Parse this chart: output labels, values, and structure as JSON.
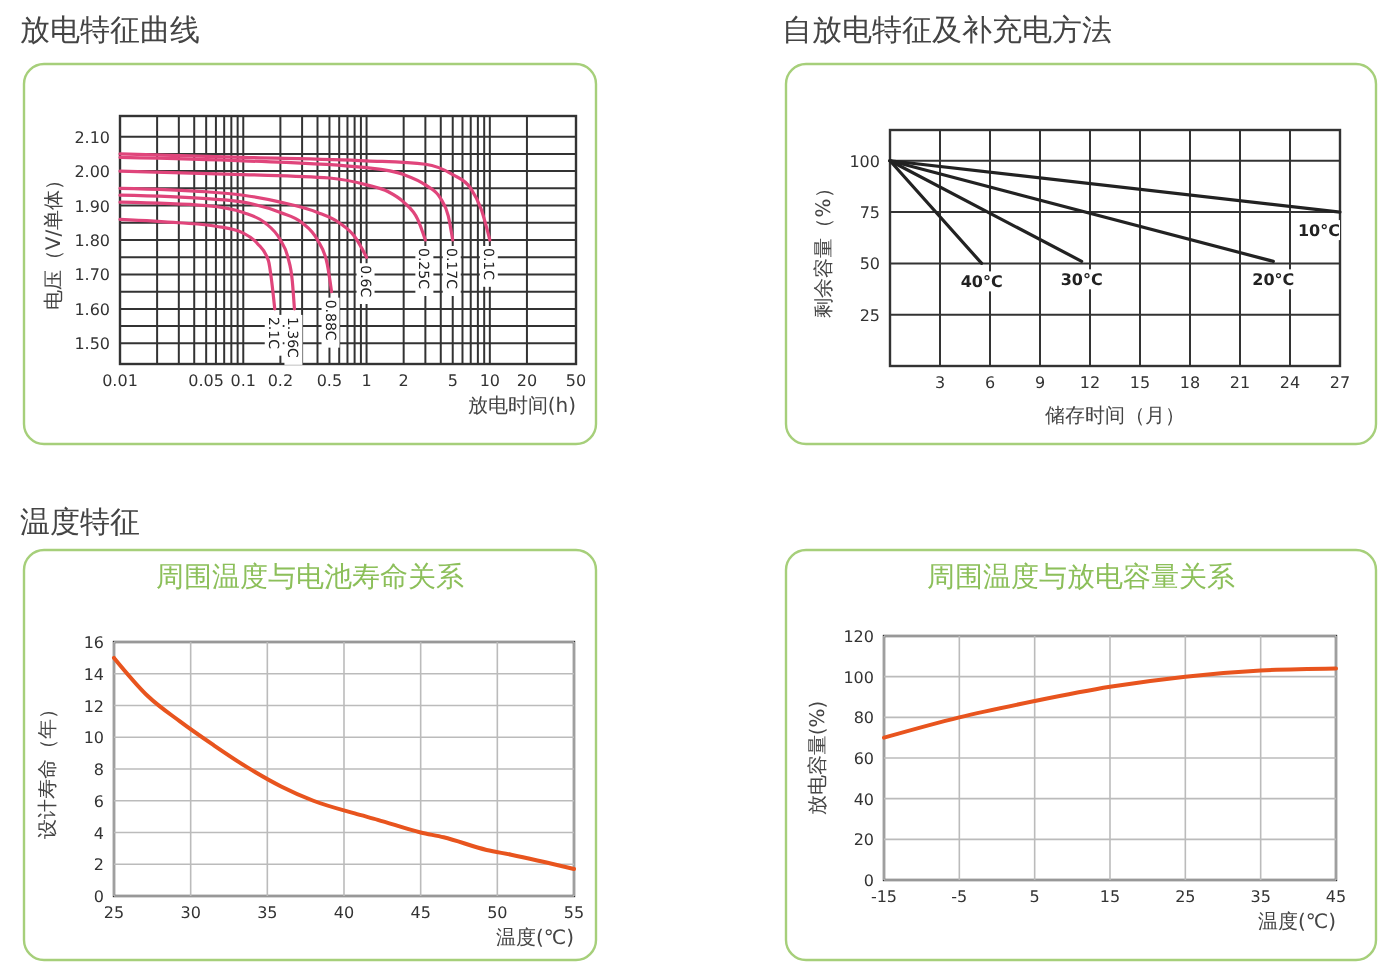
{
  "chart_data": [
    {
      "type": "line",
      "title": "放电特征曲线",
      "xlabel": "放电时间(h)",
      "ylabel": "电压（V/单体）",
      "log": "x",
      "grid": true,
      "xlim": [
        0.01,
        50
      ],
      "ylim": [
        1.44,
        2.16
      ],
      "xticks": [
        0.01,
        {
          "value": 0.02,
          "label": null
        },
        {
          "value": 0.03,
          "label": null
        },
        {
          "value": 0.04,
          "label": null
        },
        0.05,
        {
          "value": 0.06,
          "label": null
        },
        {
          "value": 0.07,
          "label": null
        },
        {
          "value": 0.08,
          "label": null
        },
        {
          "value": 0.09,
          "label": null
        },
        0.1,
        0.2,
        {
          "value": 0.3,
          "label": null
        },
        {
          "value": 0.4,
          "label": null
        },
        0.5,
        {
          "value": 0.6,
          "label": null
        },
        {
          "value": 0.7,
          "label": null
        },
        {
          "value": 0.8,
          "label": null
        },
        {
          "value": 0.9,
          "label": null
        },
        1,
        2,
        {
          "value": 3,
          "label": null
        },
        {
          "value": 4,
          "label": null
        },
        5,
        {
          "value": 6,
          "label": null
        },
        {
          "value": 7,
          "label": null
        },
        {
          "value": 8,
          "label": null
        },
        {
          "value": 9,
          "label": null
        },
        10,
        20,
        50
      ],
      "yticks": [
        {
          "value": 1.5,
          "label": "1.50"
        },
        {
          "value": 1.55,
          "label": null
        },
        {
          "value": 1.6,
          "label": "1.60"
        },
        {
          "value": 1.65,
          "label": null
        },
        {
          "value": 1.7,
          "label": "1.70"
        },
        {
          "value": 1.75,
          "label": null
        },
        {
          "value": 1.8,
          "label": "1.80"
        },
        {
          "value": 1.85,
          "label": null
        },
        {
          "value": 1.9,
          "label": "1.90"
        },
        {
          "value": 1.95,
          "label": null
        },
        {
          "value": 2.0,
          "label": "2.00"
        },
        {
          "value": 2.05,
          "label": null
        },
        {
          "value": 2.1,
          "label": "2.10"
        }
      ],
      "series": [
        {
          "name": "0.1C",
          "color": "#e0457b",
          "x": [
            0.01,
            0.1,
            1,
            3,
            5,
            7,
            8.5,
            10
          ],
          "values": [
            2.05,
            2.04,
            2.03,
            2.02,
            1.99,
            1.95,
            1.89,
            1.8
          ]
        },
        {
          "name": "0.17C",
          "color": "#e0457b",
          "x": [
            0.01,
            0.1,
            1,
            2,
            3,
            4,
            4.6,
            5
          ],
          "values": [
            2.04,
            2.03,
            2.01,
            1.99,
            1.96,
            1.92,
            1.87,
            1.8
          ]
        },
        {
          "name": "0.25C",
          "color": "#e0457b",
          "x": [
            0.01,
            0.1,
            0.5,
            1,
            1.5,
            2,
            2.6,
            3
          ],
          "values": [
            2.0,
            1.99,
            1.98,
            1.96,
            1.94,
            1.91,
            1.86,
            1.8
          ]
        },
        {
          "name": "0.6C",
          "color": "#e0457b",
          "x": [
            0.01,
            0.05,
            0.1,
            0.2,
            0.4,
            0.6,
            0.8,
            1
          ],
          "values": [
            1.95,
            1.94,
            1.93,
            1.91,
            1.88,
            1.85,
            1.81,
            1.75
          ]
        },
        {
          "name": "0.88C",
          "color": "#e0457b",
          "x": [
            0.01,
            0.05,
            0.1,
            0.2,
            0.3,
            0.4,
            0.48,
            0.52
          ],
          "values": [
            1.93,
            1.92,
            1.91,
            1.88,
            1.85,
            1.8,
            1.73,
            1.65
          ]
        },
        {
          "name": "1.36C",
          "color": "#e0457b",
          "x": [
            0.01,
            0.05,
            0.1,
            0.15,
            0.2,
            0.23,
            0.25,
            0.26
          ],
          "values": [
            1.91,
            1.9,
            1.88,
            1.85,
            1.8,
            1.75,
            1.68,
            1.6
          ]
        },
        {
          "name": "2.1C",
          "color": "#e0457b",
          "x": [
            0.01,
            0.03,
            0.06,
            0.1,
            0.13,
            0.16,
            0.17,
            0.18
          ],
          "values": [
            1.86,
            1.85,
            1.84,
            1.82,
            1.79,
            1.74,
            1.68,
            1.6
          ]
        }
      ]
    },
    {
      "type": "line",
      "title": "自放电特征及补充电方法",
      "xlabel": "储存时间（月）",
      "ylabel": "剩余容量（%）",
      "grid": true,
      "xlim": [
        0,
        27
      ],
      "ylim": [
        0,
        115
      ],
      "xticks": [
        3,
        6,
        9,
        12,
        15,
        18,
        21,
        24,
        27
      ],
      "yticks": [
        25,
        50,
        75,
        100
      ],
      "series": [
        {
          "name": "40°C",
          "color": "#222222",
          "x": [
            0,
            5.5
          ],
          "values": [
            100,
            50
          ]
        },
        {
          "name": "30°C",
          "color": "#222222",
          "x": [
            0,
            11.5
          ],
          "values": [
            100,
            51
          ]
        },
        {
          "name": "20°C",
          "color": "#222222",
          "x": [
            0,
            23
          ],
          "values": [
            100,
            51
          ]
        },
        {
          "name": "10°C",
          "color": "#222222",
          "x": [
            0,
            27
          ],
          "values": [
            100,
            75
          ]
        }
      ]
    },
    {
      "type": "line",
      "title": "周围温度与电池寿命关系",
      "annotations": [
        "温度特征"
      ],
      "xlabel": "温度(℃)",
      "ylabel": "设计寿命（年）",
      "grid": true,
      "xlim": [
        25,
        55
      ],
      "ylim": [
        0,
        16
      ],
      "xticks": [
        25,
        30,
        35,
        40,
        45,
        50,
        55
      ],
      "yticks": [
        0,
        2,
        4,
        6,
        8,
        10,
        12,
        14,
        16
      ],
      "series": [
        {
          "color": "#e8541e",
          "x": [
            25,
            27.2,
            29.3,
            31.5,
            33.7,
            35.9,
            38,
            40.7,
            42.2,
            45,
            46.5,
            49.3,
            50.9,
            55
          ],
          "values": [
            15,
            12.6,
            11,
            9.5,
            8.1,
            6.9,
            6,
            5.2,
            4.8,
            4,
            3.7,
            2.9,
            2.6,
            1.7
          ]
        }
      ]
    },
    {
      "type": "line",
      "title": "周围温度与放电容量关系",
      "xlabel": "温度(℃)",
      "ylabel": "放电容量(%)",
      "grid": true,
      "xlim": [
        -15,
        45
      ],
      "ylim": [
        0,
        120
      ],
      "xticks": [
        -15,
        -5,
        5,
        15,
        25,
        35,
        45
      ],
      "yticks": [
        0,
        20,
        40,
        60,
        80,
        100,
        120
      ],
      "series": [
        {
          "color": "#e8541e",
          "x": [
            -15,
            -5,
            5,
            15,
            25,
            35,
            45
          ],
          "values": [
            70,
            80,
            88,
            95,
            100,
            103,
            104
          ]
        }
      ]
    }
  ]
}
